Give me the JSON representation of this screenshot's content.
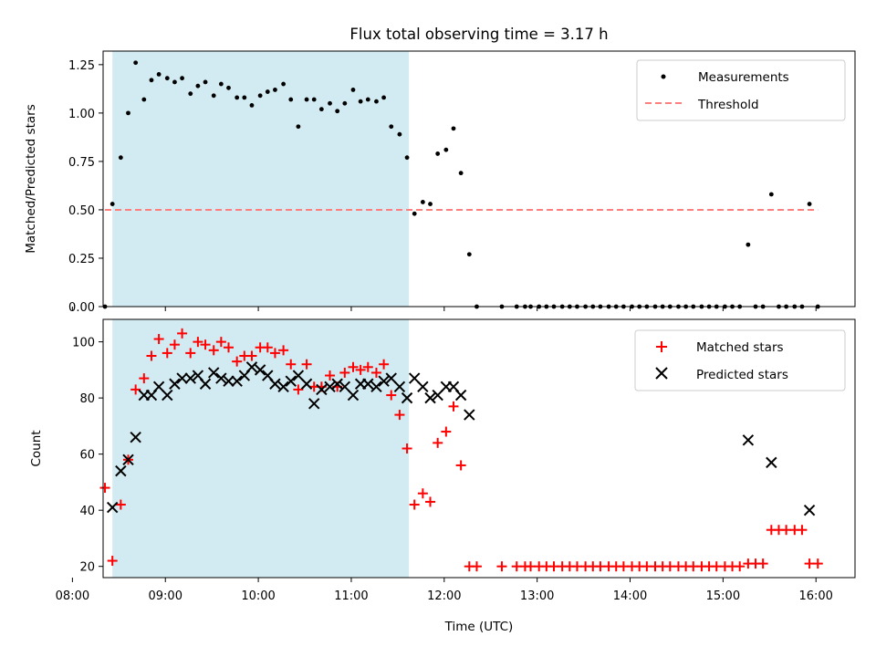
{
  "chart_data": [
    {
      "type": "scatter",
      "title": "Flux total observing time = 3.17 h",
      "ylabel": "Matched/Predicted stars",
      "ylim": [
        0,
        1.32
      ],
      "yticks": [
        "0.00",
        "0.25",
        "0.50",
        "0.75",
        "1.00",
        "1.25"
      ],
      "ytick_values": [
        0,
        0.25,
        0.5,
        0.75,
        1.0,
        1.25
      ],
      "observing_window": {
        "start": 8.43,
        "end": 11.62
      },
      "series": [
        {
          "name": "Measurements",
          "color": "#000000",
          "x": [
            8.35,
            8.43,
            8.52,
            8.6,
            8.68,
            8.77,
            8.85,
            8.93,
            9.02,
            9.1,
            9.18,
            9.27,
            9.35,
            9.43,
            9.52,
            9.6,
            9.68,
            9.77,
            9.85,
            9.93,
            10.02,
            10.1,
            10.18,
            10.27,
            10.35,
            10.43,
            10.52,
            10.6,
            10.68,
            10.77,
            10.85,
            10.93,
            11.02,
            11.1,
            11.18,
            11.27,
            11.35,
            11.43,
            11.52,
            11.6,
            11.68,
            11.77,
            11.85,
            11.93,
            12.02,
            12.1,
            12.18,
            12.27,
            12.35,
            12.62,
            12.78,
            12.87,
            12.93,
            13.02,
            13.1,
            13.18,
            13.27,
            13.35,
            13.43,
            13.52,
            13.6,
            13.68,
            13.77,
            13.85,
            13.93,
            14.02,
            14.1,
            14.18,
            14.27,
            14.35,
            14.43,
            14.52,
            14.6,
            14.68,
            14.77,
            14.85,
            14.93,
            15.02,
            15.1,
            15.18,
            15.27,
            15.35,
            15.43,
            15.52,
            15.6,
            15.68,
            15.77,
            15.85,
            15.93,
            16.02
          ],
          "y": [
            0.0,
            0.53,
            0.77,
            1.0,
            1.26,
            1.07,
            1.17,
            1.2,
            1.18,
            1.16,
            1.18,
            1.1,
            1.14,
            1.16,
            1.09,
            1.15,
            1.13,
            1.08,
            1.08,
            1.04,
            1.09,
            1.11,
            1.12,
            1.15,
            1.07,
            0.93,
            1.07,
            1.07,
            1.02,
            1.05,
            1.01,
            1.05,
            1.12,
            1.06,
            1.07,
            1.06,
            1.08,
            0.93,
            0.89,
            0.77,
            0.48,
            0.54,
            0.53,
            0.79,
            0.81,
            0.92,
            0.69,
            0.27,
            0.0,
            0.0,
            0.0,
            0.0,
            0.0,
            0.0,
            0.0,
            0.0,
            0.0,
            0.0,
            0.0,
            0.0,
            0.0,
            0.0,
            0.0,
            0.0,
            0.0,
            0.0,
            0.0,
            0.0,
            0.0,
            0.0,
            0.0,
            0.0,
            0.0,
            0.0,
            0.0,
            0.0,
            0.0,
            0.0,
            0.0,
            0.0,
            0.32,
            0.0,
            0.0,
            0.58,
            0.0,
            0.0,
            0.0,
            0.0,
            0.53,
            0.0
          ]
        },
        {
          "name": "Threshold",
          "color": "#ff7f7f",
          "style": "dashed",
          "x": [
            8.35,
            16.02
          ],
          "y": [
            0.5,
            0.5
          ]
        }
      ],
      "legend_location": "top-right"
    },
    {
      "type": "scatter",
      "title": "",
      "xlabel": "Time (UTC)",
      "ylabel": "Count",
      "ylim": [
        16,
        108
      ],
      "yticks": [
        "20",
        "40",
        "60",
        "80",
        "100"
      ],
      "ytick_values": [
        20,
        40,
        60,
        80,
        100
      ],
      "xlim": [
        8.33,
        16.42
      ],
      "xticks": [
        "08:00",
        "09:00",
        "10:00",
        "11:00",
        "12:00",
        "13:00",
        "14:00",
        "15:00",
        "16:00"
      ],
      "xtick_values": [
        8,
        9,
        10,
        11,
        12,
        13,
        14,
        15,
        16
      ],
      "observing_window": {
        "start": 8.43,
        "end": 11.62
      },
      "series": [
        {
          "name": "Matched stars",
          "color": "#ff0000",
          "marker": "+",
          "x": [
            8.35,
            8.43,
            8.52,
            8.6,
            8.68,
            8.77,
            8.85,
            8.93,
            9.02,
            9.1,
            9.18,
            9.27,
            9.35,
            9.43,
            9.52,
            9.6,
            9.68,
            9.77,
            9.85,
            9.93,
            10.02,
            10.1,
            10.18,
            10.27,
            10.35,
            10.43,
            10.52,
            10.6,
            10.68,
            10.77,
            10.85,
            10.93,
            11.02,
            11.1,
            11.18,
            11.27,
            11.35,
            11.43,
            11.52,
            11.6,
            11.68,
            11.77,
            11.85,
            11.93,
            12.02,
            12.1,
            12.18,
            12.27,
            12.35,
            12.62,
            12.78,
            12.87,
            12.93,
            13.02,
            13.1,
            13.18,
            13.27,
            13.35,
            13.43,
            13.52,
            13.6,
            13.68,
            13.77,
            13.85,
            13.93,
            14.02,
            14.1,
            14.18,
            14.27,
            14.35,
            14.43,
            14.52,
            14.6,
            14.68,
            14.77,
            14.85,
            14.93,
            15.02,
            15.1,
            15.18,
            15.27,
            15.35,
            15.43,
            15.52,
            15.6,
            15.68,
            15.77,
            15.85,
            15.93,
            16.02
          ],
          "y": [
            48,
            22,
            42,
            58,
            83,
            87,
            95,
            101,
            96,
            99,
            103,
            96,
            100,
            99,
            97,
            100,
            98,
            93,
            95,
            95,
            98,
            98,
            96,
            97,
            92,
            83,
            92,
            84,
            84,
            88,
            84,
            89,
            91,
            90,
            91,
            89,
            92,
            81,
            74,
            62,
            42,
            46,
            43,
            64,
            68,
            77,
            56,
            20,
            20,
            20,
            20,
            20,
            20,
            20,
            20,
            20,
            20,
            20,
            20,
            20,
            20,
            20,
            20,
            20,
            20,
            20,
            20,
            20,
            20,
            20,
            20,
            20,
            20,
            20,
            20,
            20,
            20,
            20,
            20,
            20,
            21,
            21,
            21,
            33,
            33,
            33,
            33,
            33,
            21,
            21
          ]
        },
        {
          "name": "Predicted stars",
          "color": "#000000",
          "marker": "x",
          "x": [
            8.43,
            8.52,
            8.6,
            8.68,
            8.77,
            8.85,
            8.93,
            9.02,
            9.1,
            9.18,
            9.27,
            9.35,
            9.43,
            9.52,
            9.6,
            9.68,
            9.77,
            9.85,
            9.93,
            10.02,
            10.1,
            10.18,
            10.27,
            10.35,
            10.43,
            10.52,
            10.6,
            10.68,
            10.77,
            10.85,
            10.93,
            11.02,
            11.1,
            11.18,
            11.27,
            11.35,
            11.43,
            11.52,
            11.6,
            11.68,
            11.77,
            11.85,
            11.93,
            12.02,
            12.1,
            12.18,
            12.27,
            15.27,
            15.52,
            15.93
          ],
          "y": [
            41,
            54,
            58,
            66,
            81,
            81,
            84,
            81,
            85,
            87,
            87,
            88,
            85,
            89,
            87,
            86,
            86,
            88,
            91,
            90,
            88,
            85,
            84,
            86,
            88,
            85,
            78,
            83,
            84,
            85,
            84,
            81,
            85,
            85,
            84,
            86,
            87,
            84,
            80,
            87,
            84,
            80,
            81,
            84,
            84,
            81,
            74,
            65,
            57,
            40
          ]
        }
      ],
      "legend_location": "top-right"
    }
  ]
}
